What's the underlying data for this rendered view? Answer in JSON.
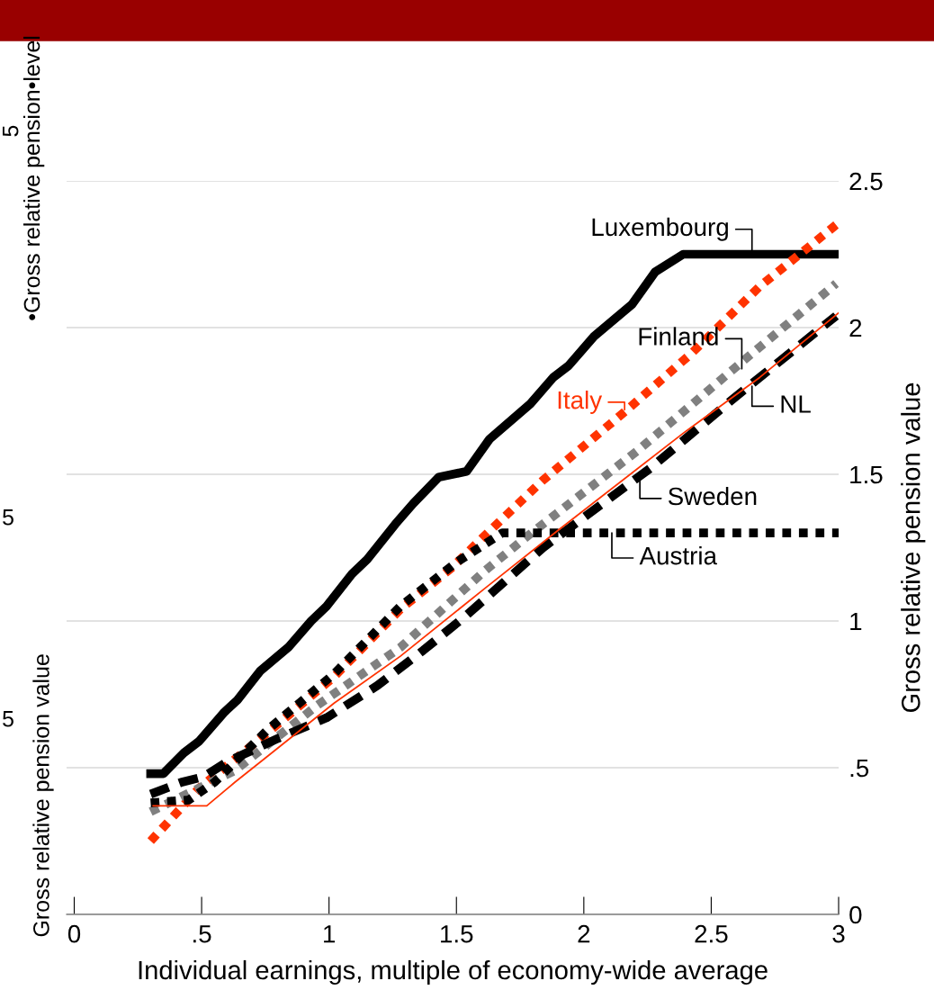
{
  "chart_data": {
    "type": "line",
    "xlabel": "Individual earnings, multiple of economy-wide average",
    "ylabel": "Gross relative pension value",
    "xlim": [
      -0.03,
      3
    ],
    "xticks": [
      0,
      {
        "value": 0.5,
        "label": ".5"
      },
      1,
      1.5,
      2,
      2.5,
      3
    ],
    "ylim": [
      0,
      2.5
    ],
    "yticks": [
      0,
      {
        "value": 0.5,
        "label": ".5"
      },
      1,
      1.5,
      2,
      2.5
    ],
    "grid": "y",
    "legend": false,
    "marker": "none",
    "series": [
      {
        "color": "#000000",
        "line_style": "solid",
        "x": [
          0.3,
          0.35,
          0.43,
          0.49,
          0.59,
          0.64,
          0.73,
          0.84,
          0.93,
          0.99,
          1.09,
          1.15,
          1.26,
          1.33,
          1.43,
          1.54,
          1.63,
          1.79,
          1.88,
          1.94,
          2.04,
          2.19,
          2.28,
          2.39,
          3.0
        ],
        "values": [
          0.48,
          0.48,
          0.55,
          0.59,
          0.69,
          0.73,
          0.83,
          0.91,
          1.0,
          1.05,
          1.16,
          1.21,
          1.33,
          1.4,
          1.49,
          1.51,
          1.62,
          1.74,
          1.83,
          1.87,
          1.97,
          2.08,
          2.19,
          2.25,
          2.25
        ]
      },
      {
        "color": "#ff3300",
        "line_style": "dotted",
        "x": [
          0.3,
          0.49,
          0.76,
          1.02,
          1.28,
          1.48,
          1.61,
          1.84,
          2.17,
          2.42,
          2.69,
          2.99
        ],
        "values": [
          0.25,
          0.43,
          0.62,
          0.81,
          1.04,
          1.18,
          1.29,
          1.48,
          1.72,
          1.91,
          2.14,
          2.35
        ]
      },
      {
        "color": "#808080",
        "line_style": "dotted",
        "x": [
          0.3,
          0.63,
          0.95,
          1.28,
          1.61,
          1.78,
          2.21,
          2.63,
          2.99
        ],
        "values": [
          0.35,
          0.49,
          0.71,
          0.91,
          1.17,
          1.29,
          1.58,
          1.89,
          2.15
        ]
      },
      {
        "color": "#000000",
        "line_style": "dashed",
        "x": [
          0.3,
          0.42,
          0.51,
          0.6,
          0.8,
          0.99,
          1.19,
          1.37,
          1.54,
          1.84,
          2.26,
          2.59,
          2.99
        ],
        "values": [
          0.41,
          0.45,
          0.47,
          0.52,
          0.6,
          0.67,
          0.78,
          0.9,
          1.02,
          1.25,
          1.52,
          1.76,
          2.04
        ]
      },
      {
        "color": "#000000",
        "line_style": "dotted",
        "x": [
          0.3,
          0.45,
          0.55,
          0.76,
          1.02,
          1.28,
          1.5,
          1.68,
          3.0
        ],
        "values": [
          0.38,
          0.39,
          0.45,
          0.63,
          0.82,
          1.05,
          1.2,
          1.3,
          1.3
        ]
      },
      {
        "color": "#ff3300",
        "line_style": "solid",
        "x": [
          0.31,
          0.52,
          0.63,
          0.76,
          1.02,
          1.28,
          1.61,
          1.9,
          2.39,
          2.69,
          3.0
        ],
        "values": [
          0.37,
          0.37,
          0.45,
          0.54,
          0.72,
          0.88,
          1.11,
          1.31,
          1.64,
          1.83,
          2.05
        ]
      }
    ],
    "annotations": [
      {
        "text": "Luxembourg",
        "x": 2.66,
        "y": 2.25
      },
      {
        "text": "Finland",
        "x": 2.62,
        "y": 1.86
      },
      {
        "text": "Italy",
        "x": 2.16,
        "y": 1.72
      },
      {
        "text": "NL",
        "x": 2.66,
        "y": 1.8
      },
      {
        "text": "Sweden",
        "x": 2.22,
        "y": 1.49
      },
      {
        "text": "Austria",
        "x": 2.11,
        "y": 1.3
      },
      "•Gross relative pension•level",
      "Gross relative pension value",
      "5",
      "5",
      "5"
    ]
  }
}
